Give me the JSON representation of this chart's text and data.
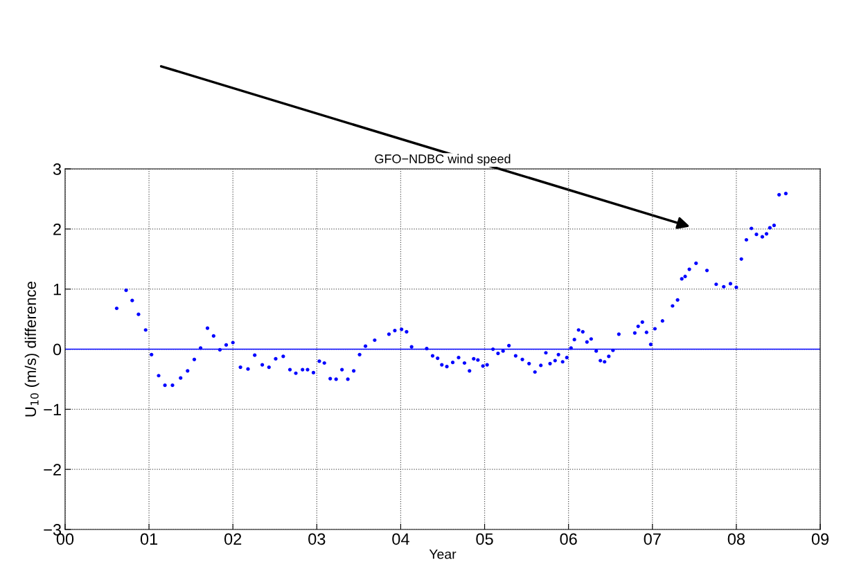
{
  "chart_data": {
    "type": "scatter",
    "title": "GFO−NDBC wind speed",
    "xlabel": "Year",
    "ylabel": "U$_{10}$ (m/s) difference",
    "x": [
      0.615,
      0.727,
      0.8,
      0.875,
      0.96,
      1.03,
      1.115,
      1.19,
      1.28,
      1.377,
      1.46,
      1.54,
      1.615,
      1.697,
      1.77,
      1.845,
      1.92,
      2.0,
      2.09,
      2.18,
      2.26,
      2.35,
      2.43,
      2.51,
      2.6,
      2.68,
      2.75,
      2.83,
      2.89,
      2.96,
      3.03,
      3.09,
      3.16,
      3.23,
      3.3,
      3.37,
      3.44,
      3.51,
      3.58,
      3.69,
      3.86,
      3.93,
      4.01,
      4.07,
      4.13,
      4.31,
      4.38,
      4.44,
      4.49,
      4.55,
      4.62,
      4.69,
      4.76,
      4.82,
      4.87,
      4.92,
      4.98,
      5.03,
      5.1,
      5.16,
      5.22,
      5.29,
      5.37,
      5.45,
      5.53,
      5.6,
      5.67,
      5.73,
      5.78,
      5.84,
      5.88,
      5.93,
      5.98,
      6.03,
      6.07,
      6.12,
      6.17,
      6.22,
      6.27,
      6.33,
      6.38,
      6.43,
      6.48,
      6.53,
      6.6,
      6.79,
      6.83,
      6.88,
      6.93,
      6.98,
      7.03,
      7.12,
      7.24,
      7.3,
      7.35,
      7.39,
      7.44,
      7.52,
      7.65,
      7.76,
      7.85,
      7.93,
      8.0,
      8.06,
      8.12,
      8.18,
      8.24,
      8.31,
      8.36,
      8.4,
      8.45,
      8.51,
      8.59
    ],
    "series": [
      {
        "color": "#0000ff",
        "values": [
          0.68,
          0.98,
          0.81,
          0.58,
          0.32,
          -0.09,
          -0.44,
          -0.6,
          -0.6,
          -0.48,
          -0.36,
          -0.17,
          0.02,
          0.35,
          0.22,
          -0.01,
          0.07,
          0.11,
          -0.3,
          -0.33,
          -0.1,
          -0.26,
          -0.3,
          -0.16,
          -0.12,
          -0.34,
          -0.4,
          -0.34,
          -0.34,
          -0.39,
          -0.2,
          -0.23,
          -0.49,
          -0.5,
          -0.34,
          -0.5,
          -0.36,
          -0.09,
          0.05,
          0.15,
          0.25,
          0.31,
          0.33,
          0.29,
          0.04,
          0.01,
          -0.11,
          -0.15,
          -0.26,
          -0.29,
          -0.22,
          -0.14,
          -0.23,
          -0.36,
          -0.16,
          -0.18,
          -0.28,
          -0.26,
          0.0,
          -0.07,
          -0.03,
          0.06,
          -0.11,
          -0.17,
          -0.24,
          -0.38,
          -0.27,
          -0.06,
          -0.24,
          -0.19,
          -0.09,
          -0.21,
          -0.14,
          0.02,
          0.16,
          0.32,
          0.29,
          0.12,
          0.17,
          -0.03,
          -0.19,
          -0.21,
          -0.12,
          -0.02,
          0.25,
          0.27,
          0.38,
          0.45,
          0.28,
          0.08,
          0.34,
          0.47,
          0.72,
          0.82,
          1.17,
          1.21,
          1.33,
          1.43,
          1.31,
          1.08,
          1.04,
          1.09,
          1.03,
          1.5,
          1.82,
          2.01,
          1.91,
          1.87,
          1.92,
          2.02,
          2.06,
          2.57,
          2.59
        ]
      }
    ],
    "xlim": [
      0,
      9
    ],
    "xticks": [
      {
        "value": 0,
        "label": "00"
      },
      {
        "value": 1,
        "label": "01"
      },
      {
        "value": 2,
        "label": "02"
      },
      {
        "value": 3,
        "label": "03"
      },
      {
        "value": 4,
        "label": "04"
      },
      {
        "value": 5,
        "label": "05"
      },
      {
        "value": 6,
        "label": "06"
      },
      {
        "value": 7,
        "label": "07"
      },
      {
        "value": 8,
        "label": "08"
      },
      {
        "value": 9,
        "label": "09"
      }
    ],
    "ylim": [
      -3,
      3
    ],
    "yticks": [
      -3,
      -2,
      -1,
      0,
      1,
      2,
      3
    ],
    "ref_lines": [
      {
        "axis": "y",
        "value": 0,
        "color": "#0000ff",
        "line_style": "solid"
      }
    ],
    "grid": true,
    "marker": "circle",
    "legend": false
  }
}
